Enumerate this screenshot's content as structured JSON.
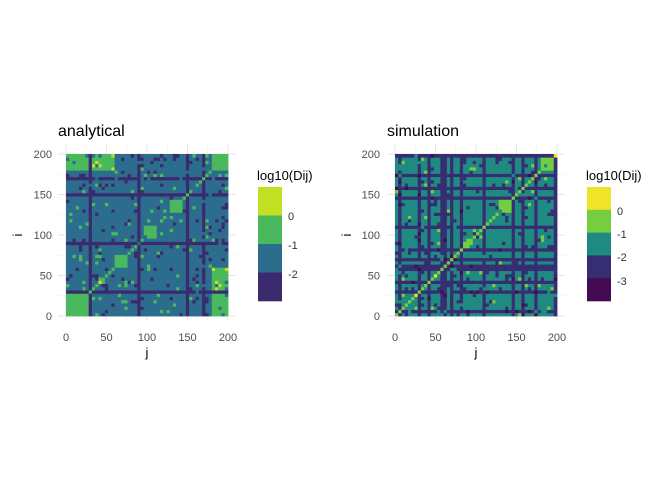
{
  "chart_data": [
    {
      "type": "heatmap",
      "title": "analytical",
      "xlabel": "j",
      "ylabel": "i",
      "xlim": [
        0,
        200
      ],
      "ylim": [
        0,
        200
      ],
      "xticks": [
        "0",
        "50",
        "100",
        "150",
        "200"
      ],
      "yticks": [
        "0",
        "50",
        "100",
        "150",
        "200"
      ],
      "grid": true,
      "legend": {
        "title": "log10(Dij)",
        "placement": "right",
        "labels": [
          "0",
          "-1",
          "-2"
        ],
        "bins": [
          {
            "range": [
              0,
              0.5
            ],
            "color": "#c2df23"
          },
          {
            "range": [
              -1,
              0
            ],
            "color": "#4ab85c"
          },
          {
            "range": [
              -2,
              -1
            ],
            "color": "#2c6d8e"
          },
          {
            "range": [
              -3,
              -2
            ],
            "color": "#3b2a6e"
          }
        ]
      },
      "symmetric": true,
      "bands": [
        {
          "i_range": [
            0,
            200
          ],
          "j_range": [
            0,
            200
          ],
          "log10_value": -1.5
        },
        {
          "i_range": [
            180,
            200
          ],
          "j_range": [
            180,
            200
          ],
          "log10_value": -0.5
        },
        {
          "i_range": [
            0,
            30
          ],
          "j_range": [
            0,
            30
          ],
          "log10_value": -0.7
        },
        {
          "i_range": [
            125,
            142
          ],
          "j_range": [
            125,
            142
          ],
          "log10_value": -0.6
        },
        {
          "i_range": [
            95,
            110
          ],
          "j_range": [
            95,
            110
          ],
          "log10_value": -0.8
        },
        {
          "i_range": [
            180,
            200
          ],
          "j_range": [
            0,
            60
          ],
          "log10_value": -0.8
        },
        {
          "i_range": [
            30,
            45
          ],
          "j_range": [
            180,
            200
          ],
          "log10_value": -0.8
        },
        {
          "i_range": [
            60,
            75
          ],
          "j_range": [
            60,
            75
          ],
          "log10_value": -0.9
        }
      ],
      "diagonal_log10_value": -0.5,
      "low_rows": [
        [
          6,
          8
        ],
        [
          28,
          30
        ],
        [
          33,
          34
        ],
        [
          58,
          60
        ],
        [
          83,
          84
        ],
        [
          88,
          89
        ],
        [
          110,
          111
        ],
        [
          148,
          150
        ],
        [
          168,
          169
        ],
        [
          183,
          184
        ]
      ],
      "low_log10_value": -2.5
    },
    {
      "type": "heatmap",
      "title": "simulation",
      "xlabel": "j",
      "ylabel": "i",
      "xlim": [
        0,
        200
      ],
      "ylim": [
        0,
        200
      ],
      "xticks": [
        "0",
        "50",
        "100",
        "150",
        "200"
      ],
      "yticks": [
        "0",
        "50",
        "100",
        "150",
        "200"
      ],
      "grid": true,
      "legend": {
        "title": "log10(Dij)",
        "placement": "right",
        "labels": [
          "0",
          "-1",
          "-2",
          "-3"
        ],
        "bins": [
          {
            "range": [
              0,
              0.5
            ],
            "color": "#f0e42a"
          },
          {
            "range": [
              -1,
              0
            ],
            "color": "#75cd40"
          },
          {
            "range": [
              -2,
              -1
            ],
            "color": "#1f8a81"
          },
          {
            "range": [
              -3,
              -2
            ],
            "color": "#372d73"
          },
          {
            "range": [
              -3.5,
              -3
            ],
            "color": "#440a52"
          }
        ]
      },
      "symmetric": true,
      "bands": [
        {
          "i_range": [
            0,
            200
          ],
          "j_range": [
            0,
            200
          ],
          "log10_value": -1.5
        },
        {
          "i_range": [
            180,
            200
          ],
          "j_range": [
            180,
            200
          ],
          "log10_value": -0.7
        },
        {
          "i_range": [
            125,
            142
          ],
          "j_range": [
            125,
            142
          ],
          "log10_value": -0.7
        },
        {
          "i_range": [
            0,
            30
          ],
          "j_range": [
            0,
            30
          ],
          "log10_value": -1.2
        }
      ],
      "diagonal_log10_value": -0.7,
      "low_rows": [
        [
          3,
          5
        ],
        [
          9,
          11
        ],
        [
          15,
          16
        ],
        [
          22,
          23
        ],
        [
          28,
          30
        ],
        [
          33,
          35
        ],
        [
          40,
          41
        ],
        [
          49,
          50
        ],
        [
          54,
          57
        ],
        [
          60,
          61
        ],
        [
          67,
          69
        ],
        [
          75,
          76
        ],
        [
          80,
          82
        ],
        [
          86,
          88
        ],
        [
          93,
          94
        ],
        [
          101,
          102
        ],
        [
          108,
          111
        ],
        [
          115,
          116
        ],
        [
          122,
          124
        ],
        [
          130,
          131
        ],
        [
          144,
          146
        ],
        [
          150,
          151
        ],
        [
          156,
          158
        ],
        [
          165,
          167
        ],
        [
          172,
          173
        ],
        [
          178,
          180
        ],
        [
          186,
          187
        ],
        [
          190,
          192
        ],
        [
          196,
          197
        ]
      ],
      "low_log10_value": -2.5
    }
  ]
}
